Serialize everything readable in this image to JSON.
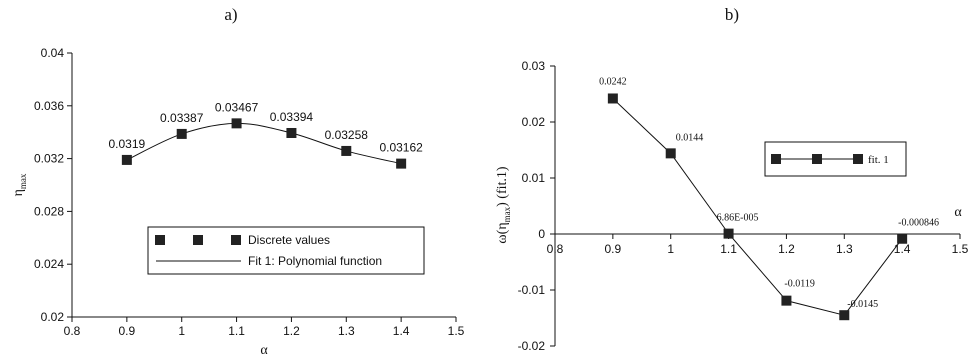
{
  "chart_data": [
    {
      "type": "scatter",
      "panel_label": "a)",
      "xlabel": "α",
      "ylabel": "η",
      "ylabel_sub": "max",
      "xlim": [
        0.8,
        1.5
      ],
      "ylim": [
        0.02,
        0.04
      ],
      "x_ticks": [
        "0.8",
        "0.9",
        "1",
        "1.1",
        "1.2",
        "1.3",
        "1.4",
        "1.5"
      ],
      "y_ticks": [
        "0.02",
        "0.024",
        "0.028",
        "0.032",
        "0.036",
        "0.04"
      ],
      "grid": false,
      "legend_position": "bottom-right",
      "series": [
        {
          "name": "Discrete values",
          "marker": "square",
          "x": [
            0.9,
            1.0,
            1.1,
            1.2,
            1.3,
            1.4
          ],
          "y": [
            0.0319,
            0.03387,
            0.03467,
            0.03394,
            0.03258,
            0.03162
          ],
          "labels": [
            "0.0319",
            "0.03387",
            "0.03467",
            "0.03394",
            "0.03258",
            "0.03162"
          ]
        },
        {
          "name": "Fit 1: Polynomial function",
          "marker": "none",
          "style": "smooth-line",
          "x": [
            0.9,
            1.0,
            1.1,
            1.2,
            1.3,
            1.4
          ],
          "y": [
            0.0319,
            0.03387,
            0.03467,
            0.03394,
            0.03258,
            0.03162
          ]
        }
      ]
    },
    {
      "type": "line",
      "panel_label": "b)",
      "xlabel": "α",
      "ylabel": "ω(η",
      "ylabel_sub": "max",
      "ylabel_tail": ") (fit.1)",
      "xlim": [
        0.8,
        1.5
      ],
      "ylim": [
        -0.02,
        0.03
      ],
      "x_ticks": [
        "0.8",
        "0.9",
        "1",
        "1.1",
        "1.2",
        "1.3",
        "1.4",
        "1.5"
      ],
      "y_ticks": [
        "-0.02",
        "-0.01",
        "0",
        "0.01",
        "0.02",
        "0.03"
      ],
      "grid": false,
      "legend_position": "top-right",
      "series": [
        {
          "name": "fit. 1",
          "marker": "square",
          "x": [
            0.9,
            1.0,
            1.1,
            1.2,
            1.3,
            1.4
          ],
          "y": [
            0.0242,
            0.0144,
            6.86e-05,
            -0.0119,
            -0.0145,
            -0.000846
          ],
          "labels": [
            "0.0242",
            "0.0144",
            "6.86E-005",
            "-0.0119",
            "-0.0145",
            "-0.000846"
          ]
        }
      ]
    }
  ],
  "colors": {
    "ink": "#111111",
    "marker": "#222222"
  }
}
